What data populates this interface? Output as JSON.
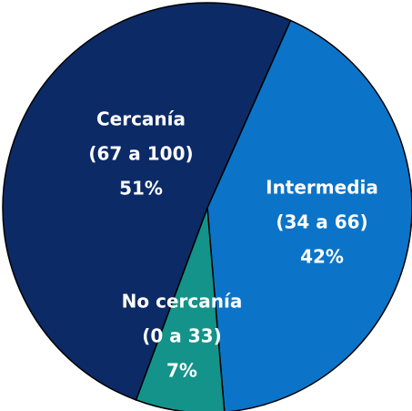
{
  "chart_data": {
    "type": "pie",
    "categories": [
      "Intermedia",
      "No cercanía",
      "Cercanía"
    ],
    "ranges": [
      "(34 a 66)",
      "(0 a 33)",
      "(67 a 100)"
    ],
    "values": [
      42,
      7,
      51
    ],
    "value_labels": [
      "42%",
      "7%",
      "51%"
    ],
    "colors": [
      "#0b74c8",
      "#139389",
      "#0c2a66"
    ]
  }
}
